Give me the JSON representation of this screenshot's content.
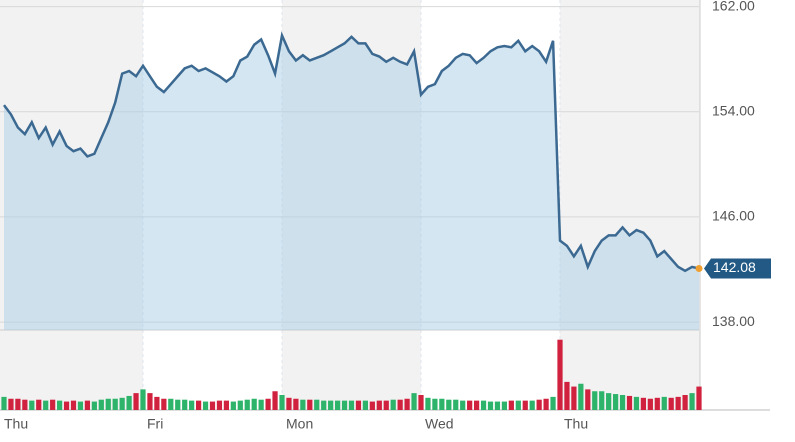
{
  "chart_data": [
    {
      "type": "area",
      "categories": [
        "Thu",
        null,
        null,
        null,
        null,
        null,
        null,
        null,
        null,
        null,
        null,
        null,
        null,
        null,
        null,
        null,
        null,
        null,
        null,
        null,
        "Fri",
        null,
        null,
        null,
        null,
        null,
        null,
        null,
        null,
        null,
        null,
        null,
        null,
        null,
        null,
        null,
        null,
        null,
        null,
        null,
        "Mon",
        null,
        null,
        null,
        null,
        null,
        null,
        null,
        null,
        null,
        null,
        null,
        null,
        null,
        null,
        null,
        null,
        null,
        null,
        null,
        "Wed",
        null,
        null,
        null,
        null,
        null,
        null,
        null,
        null,
        null,
        null,
        null,
        null,
        null,
        null,
        null,
        null,
        null,
        null,
        null,
        "Thu",
        null,
        null,
        null,
        null,
        null,
        null,
        null,
        null,
        null,
        null,
        null,
        null,
        null,
        null,
        null,
        null,
        null,
        null,
        null,
        null
      ],
      "values": [
        154.5,
        153.8,
        152.8,
        152.3,
        153.2,
        152.0,
        152.8,
        151.5,
        152.5,
        151.4,
        151.0,
        151.2,
        150.6,
        150.8,
        152.0,
        153.2,
        154.7,
        156.9,
        157.1,
        156.7,
        157.5,
        156.7,
        155.9,
        155.5,
        156.1,
        156.7,
        157.3,
        157.5,
        157.1,
        157.3,
        157.0,
        156.7,
        156.3,
        156.7,
        157.9,
        158.2,
        159.1,
        159.5,
        158.3,
        156.9,
        159.8,
        158.6,
        157.9,
        158.3,
        157.9,
        158.1,
        158.3,
        158.6,
        158.9,
        159.2,
        159.7,
        159.2,
        159.2,
        158.4,
        158.2,
        157.8,
        158.1,
        157.8,
        157.6,
        158.6,
        155.3,
        155.9,
        156.1,
        157.1,
        157.5,
        158.1,
        158.4,
        158.3,
        157.7,
        158.1,
        158.6,
        158.9,
        159.0,
        158.9,
        159.4,
        158.6,
        159.0,
        158.6,
        157.8,
        159.4,
        144.2,
        143.8,
        143.0,
        143.8,
        142.2,
        143.4,
        144.2,
        144.6,
        144.6,
        145.2,
        144.6,
        145.0,
        144.8,
        144.2,
        143.0,
        143.4,
        142.8,
        142.2,
        141.9,
        142.2,
        142.08
      ],
      "color": "#3b6991",
      "ylim": [
        137.4,
        162.5
      ],
      "yticks": [
        {
          "value": 138,
          "label": "138.00"
        },
        {
          "value": 146,
          "label": "146.00"
        },
        {
          "value": 154,
          "label": "154.00"
        },
        {
          "value": 162,
          "label": "162.00"
        }
      ],
      "grid": true
    },
    {
      "type": "bar",
      "values": [
        14,
        12,
        12,
        11,
        10,
        11,
        10,
        11,
        10,
        9,
        10,
        9,
        10,
        9,
        11,
        12,
        12,
        13,
        15,
        18,
        22,
        18,
        14,
        12,
        12,
        11,
        11,
        10,
        10,
        9,
        9,
        10,
        10,
        9,
        10,
        11,
        12,
        11,
        12,
        20,
        16,
        13,
        12,
        11,
        11,
        11,
        10,
        10,
        10,
        10,
        10,
        10,
        10,
        9,
        10,
        10,
        11,
        11,
        12,
        18,
        16,
        13,
        12,
        12,
        11,
        11,
        10,
        10,
        10,
        10,
        9,
        9,
        9,
        10,
        10,
        10,
        10,
        11,
        12,
        14,
        75,
        30,
        25,
        28,
        22,
        20,
        20,
        18,
        17,
        16,
        15,
        14,
        13,
        12,
        13,
        14,
        13,
        14,
        16,
        18,
        25
      ],
      "up_color": "#2db36a",
      "down_color": "#d0213f",
      "ylim": [
        0,
        80
      ]
    }
  ]
}
